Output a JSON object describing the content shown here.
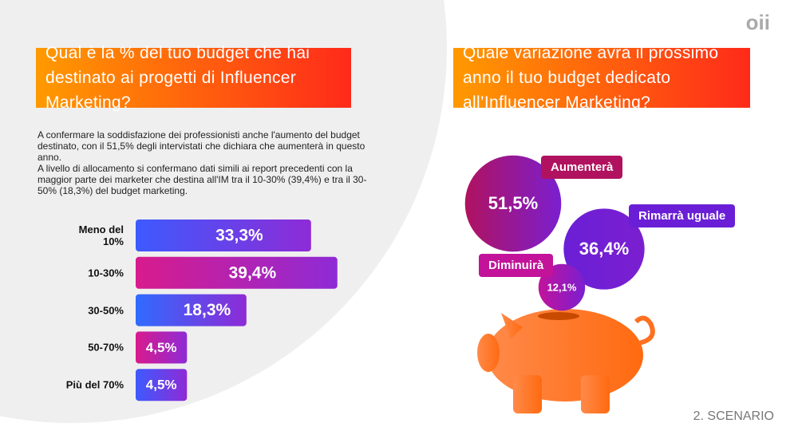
{
  "logo": "oii",
  "footer": "2. SCENARIO",
  "chart_data": [
    {
      "type": "bar",
      "title": "Qual è la % del tuo budget che hai destinato ai progetti di Influencer Marketing?",
      "description": [
        "A confermare la soddisfazione dei professionisti anche l'aumento del budget destinato, con il 51,5% degli intervistati che dichiara che aumenterà in questo anno.",
        "A livello di allocamento si confermano dati simili ai report precedenti con la maggior parte dei marketer che destina all'IM tra il 10-30% (39,4%) e tra il 30-50% (18,3%) del budget marketing."
      ],
      "categories": [
        "Meno del 10%",
        "10-30%",
        "30-50%",
        "50-70%",
        "Più del 70%"
      ],
      "values": [
        33.3,
        39.4,
        18.3,
        4.5,
        4.5
      ],
      "value_labels": [
        "33,3%",
        "39,4%",
        "18,3%",
        "4,5%",
        "4,5%"
      ],
      "colors": [
        "#3d5afe",
        "#d81b8c",
        "#2f6bff",
        "#d81b8c",
        "#3d5afe"
      ]
    },
    {
      "type": "bubble",
      "title": "Quale variazione avrà il prossimo anno il tuo budget dedicato all’Influencer Marketing?",
      "categories": [
        "Aumenterà",
        "Rimarrà uguale",
        "Diminuirà"
      ],
      "values": [
        51.5,
        36.4,
        12.1
      ],
      "value_labels": [
        "51,5%",
        "36,4%",
        "12,1%"
      ],
      "colors": [
        "#b0125f",
        "#6a1fd6",
        "#c2139a"
      ]
    }
  ]
}
